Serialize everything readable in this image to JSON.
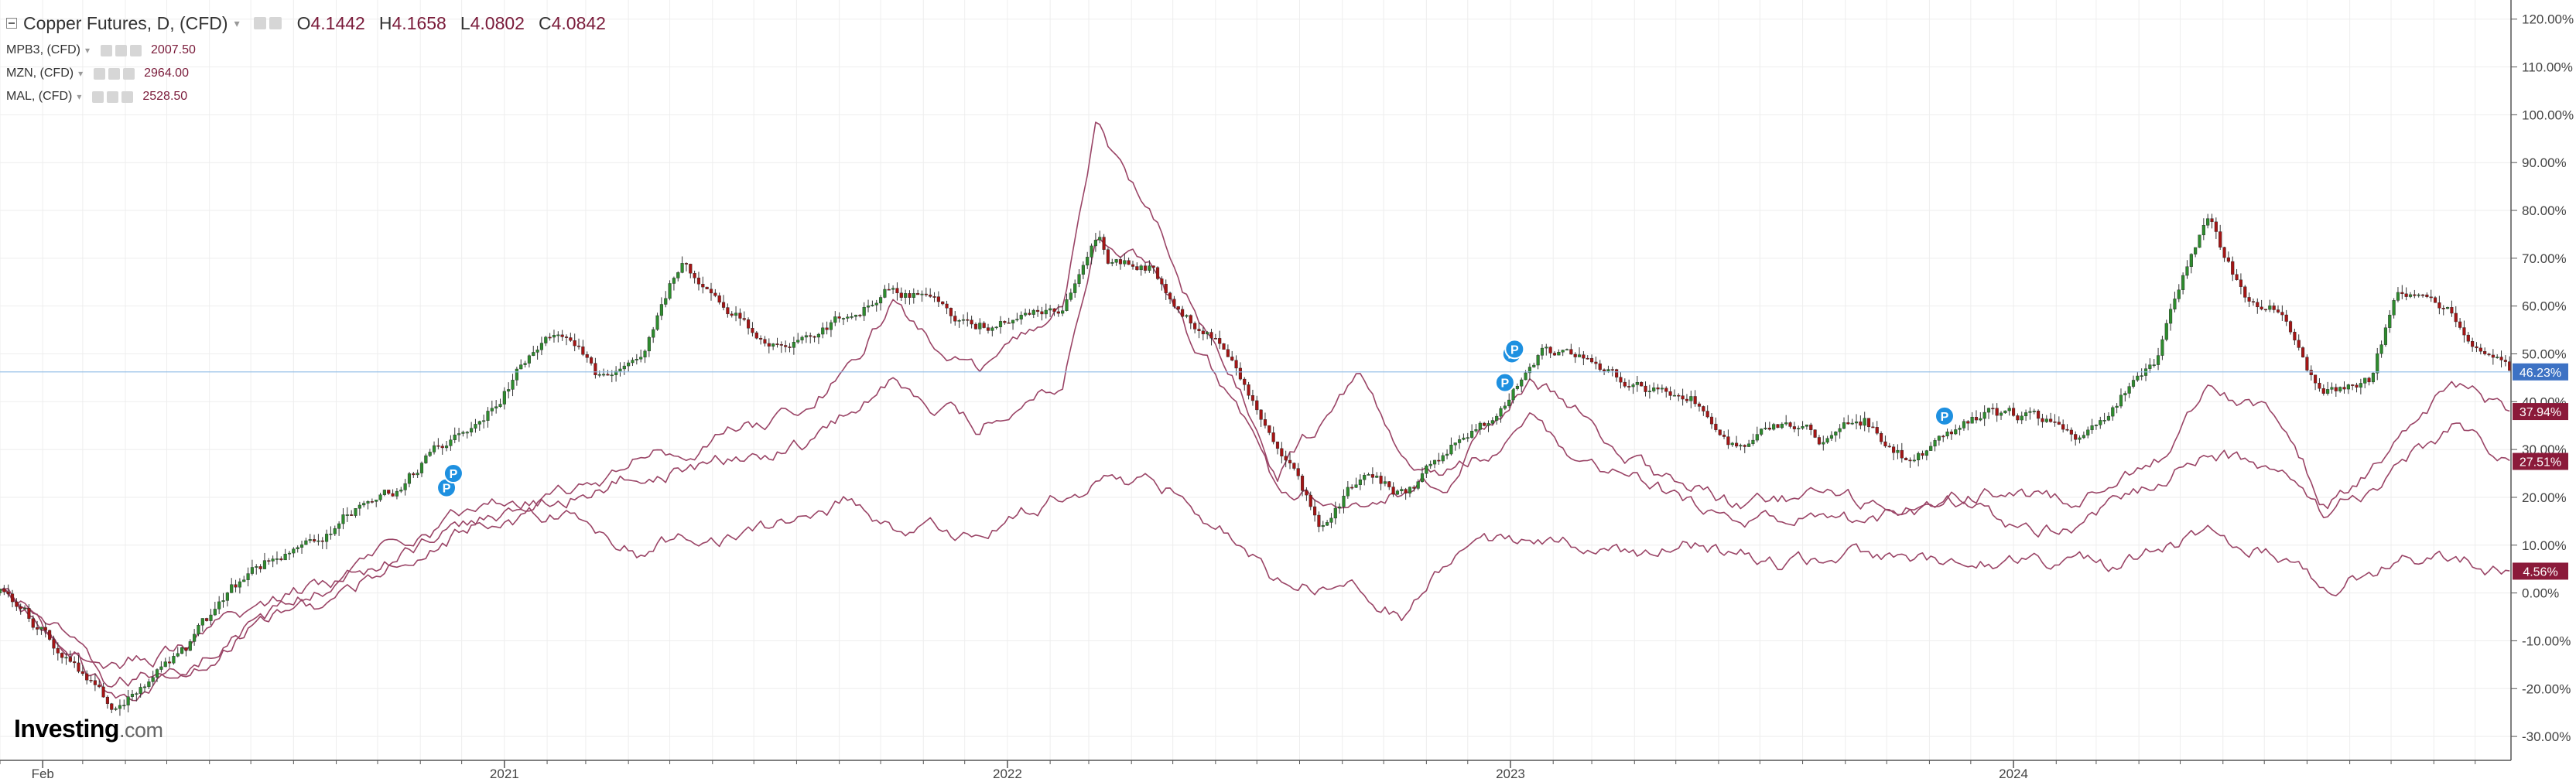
{
  "legend": {
    "title": "Copper Futures, D, (CFD)",
    "ohlc": {
      "o_key": "O",
      "o": "4.1442",
      "h_key": "H",
      "h": "4.1658",
      "l_key": "L",
      "l": "4.0802",
      "c_key": "C",
      "c": "4.0842"
    },
    "series": [
      {
        "label": "MPB3, (CFD)",
        "value": "2007.50"
      },
      {
        "label": "MZN, (CFD)",
        "value": "2964.00"
      },
      {
        "label": "MAL, (CFD)",
        "value": "2528.50"
      }
    ]
  },
  "watermark": {
    "bold": "Investing",
    "light": ".com"
  },
  "colors": {
    "up": "#2e8b2e",
    "down": "#a31515",
    "overlay": "#9a4466",
    "price_label": "#3d72c4",
    "overlay_label": "#8b1a3a",
    "axis": "#555555",
    "grid": "#eeeeee"
  },
  "chart_data": {
    "type": "line",
    "y_unit": "percent",
    "ylim": [
      -35,
      124
    ],
    "yticks": [
      -30,
      -20,
      -10,
      0,
      10,
      20,
      30,
      40,
      50,
      60,
      70,
      80,
      90,
      100,
      110,
      120
    ],
    "ytick_labels": [
      "-30.00%",
      "-20.00%",
      "-10.00%",
      "0.00%",
      "10.00%",
      "20.00%",
      "30.00%",
      "40.00%",
      "50.00%",
      "60.00%",
      "70.00%",
      "80.00%",
      "90.00%",
      "100.00%",
      "110.00%",
      "120.00%"
    ],
    "xlim": [
      "2020-01-01",
      "2024-12-27"
    ],
    "xticks": [
      {
        "date": "2020-02-01",
        "label": "Feb"
      },
      {
        "date": "2021-01-01",
        "label": "2021"
      },
      {
        "date": "2022-01-01",
        "label": "2022"
      },
      {
        "date": "2023-01-01",
        "label": "2023"
      },
      {
        "date": "2024-01-01",
        "label": "2024"
      }
    ],
    "grid": true,
    "legend_position": "top-left",
    "series": [
      {
        "name": "Copper Futures, D, (CFD)",
        "style": "candlestick",
        "last_label": "46.23%",
        "points": [
          [
            "2020-01-01",
            0
          ],
          [
            "2020-02-01",
            -8
          ],
          [
            "2020-03-15",
            -22
          ],
          [
            "2020-03-22",
            -25
          ],
          [
            "2020-04-15",
            -20
          ],
          [
            "2020-05-15",
            -12
          ],
          [
            "2020-06-15",
            0
          ],
          [
            "2020-07-15",
            7
          ],
          [
            "2020-08-15",
            10
          ],
          [
            "2020-09-15",
            18
          ],
          [
            "2020-10-15",
            22
          ],
          [
            "2020-11-15",
            30
          ],
          [
            "2020-12-15",
            35
          ],
          [
            "2021-01-10",
            46
          ],
          [
            "2021-02-10",
            55
          ],
          [
            "2021-03-10",
            45
          ],
          [
            "2021-04-10",
            50
          ],
          [
            "2021-05-10",
            70
          ],
          [
            "2021-06-10",
            60
          ],
          [
            "2021-07-10",
            53
          ],
          [
            "2021-08-10",
            55
          ],
          [
            "2021-09-10",
            58
          ],
          [
            "2021-10-10",
            65
          ],
          [
            "2021-11-10",
            60
          ],
          [
            "2021-12-10",
            56
          ],
          [
            "2022-01-10",
            58
          ],
          [
            "2022-02-10",
            60
          ],
          [
            "2022-03-07",
            75
          ],
          [
            "2022-03-15",
            70
          ],
          [
            "2022-04-15",
            68
          ],
          [
            "2022-05-15",
            57
          ],
          [
            "2022-06-15",
            48
          ],
          [
            "2022-07-15",
            32
          ],
          [
            "2022-08-15",
            15
          ],
          [
            "2022-09-15",
            25
          ],
          [
            "2022-10-15",
            20
          ],
          [
            "2022-11-15",
            30
          ],
          [
            "2022-12-15",
            36
          ],
          [
            "2023-01-10",
            45
          ],
          [
            "2023-01-25",
            52
          ],
          [
            "2023-03-15",
            45
          ],
          [
            "2023-05-15",
            40
          ],
          [
            "2023-06-15",
            30
          ],
          [
            "2023-07-15",
            35
          ],
          [
            "2023-08-15",
            32
          ],
          [
            "2023-09-15",
            36
          ],
          [
            "2023-10-15",
            28
          ],
          [
            "2023-11-15",
            33
          ],
          [
            "2023-12-15",
            38
          ],
          [
            "2024-01-15",
            36
          ],
          [
            "2024-02-15",
            33
          ],
          [
            "2024-03-15",
            40
          ],
          [
            "2024-04-15",
            50
          ],
          [
            "2024-05-20",
            80
          ],
          [
            "2024-06-15",
            62
          ],
          [
            "2024-07-15",
            60
          ],
          [
            "2024-08-10",
            42
          ],
          [
            "2024-09-15",
            45
          ],
          [
            "2024-10-05",
            62
          ],
          [
            "2024-11-15",
            58
          ],
          [
            "2024-12-27",
            46.23
          ]
        ]
      },
      {
        "name": "MPB3, (CFD)",
        "style": "line",
        "last_label": "4.56%",
        "points": [
          [
            "2020-01-01",
            0
          ],
          [
            "2020-02-01",
            -5
          ],
          [
            "2020-03-22",
            -20
          ],
          [
            "2020-05-15",
            -15
          ],
          [
            "2020-07-15",
            -5
          ],
          [
            "2020-09-15",
            0
          ],
          [
            "2020-10-15",
            8
          ],
          [
            "2020-12-15",
            15
          ],
          [
            "2021-02-10",
            17
          ],
          [
            "2021-04-10",
            8
          ],
          [
            "2021-05-10",
            12
          ],
          [
            "2021-07-10",
            13
          ],
          [
            "2021-09-10",
            20
          ],
          [
            "2021-10-10",
            14
          ],
          [
            "2021-12-10",
            12
          ],
          [
            "2022-02-10",
            20
          ],
          [
            "2022-03-15",
            25
          ],
          [
            "2022-05-15",
            20
          ],
          [
            "2022-07-15",
            3
          ],
          [
            "2022-09-15",
            2
          ],
          [
            "2022-10-15",
            -5
          ],
          [
            "2022-11-15",
            6
          ],
          [
            "2023-01-15",
            12
          ],
          [
            "2023-03-15",
            8
          ],
          [
            "2023-05-15",
            10
          ],
          [
            "2023-07-15",
            6
          ],
          [
            "2023-09-15",
            8
          ],
          [
            "2023-11-15",
            5
          ],
          [
            "2024-01-15",
            8
          ],
          [
            "2024-03-15",
            5
          ],
          [
            "2024-05-20",
            12
          ],
          [
            "2024-07-15",
            8
          ],
          [
            "2024-08-15",
            2
          ],
          [
            "2024-10-15",
            8
          ],
          [
            "2024-12-27",
            4.56
          ]
        ]
      },
      {
        "name": "MZN, (CFD)",
        "style": "line",
        "last_label": "37.94%",
        "points": [
          [
            "2020-01-01",
            0
          ],
          [
            "2020-02-01",
            -8
          ],
          [
            "2020-03-22",
            -22
          ],
          [
            "2020-05-15",
            -15
          ],
          [
            "2020-07-15",
            -5
          ],
          [
            "2020-09-15",
            5
          ],
          [
            "2020-10-15",
            12
          ],
          [
            "2020-12-15",
            18
          ],
          [
            "2021-02-10",
            20
          ],
          [
            "2021-04-10",
            25
          ],
          [
            "2021-06-10",
            27
          ],
          [
            "2021-08-10",
            32
          ],
          [
            "2021-10-10",
            45
          ],
          [
            "2021-12-10",
            35
          ],
          [
            "2022-02-10",
            45
          ],
          [
            "2022-03-07",
            75
          ],
          [
            "2022-04-15",
            70
          ],
          [
            "2022-05-15",
            52
          ],
          [
            "2022-06-15",
            40
          ],
          [
            "2022-07-15",
            22
          ],
          [
            "2022-09-15",
            20
          ],
          [
            "2022-11-15",
            24
          ],
          [
            "2023-01-15",
            45
          ],
          [
            "2023-02-15",
            38
          ],
          [
            "2023-04-15",
            25
          ],
          [
            "2023-06-15",
            18
          ],
          [
            "2023-08-15",
            20
          ],
          [
            "2023-10-15",
            16
          ],
          [
            "2023-12-15",
            22
          ],
          [
            "2024-02-15",
            18
          ],
          [
            "2024-04-15",
            28
          ],
          [
            "2024-05-20",
            45
          ],
          [
            "2024-07-15",
            35
          ],
          [
            "2024-08-15",
            18
          ],
          [
            "2024-10-15",
            35
          ],
          [
            "2024-11-15",
            42
          ],
          [
            "2024-12-27",
            37.94
          ]
        ]
      },
      {
        "name": "MAL, (CFD)",
        "style": "line",
        "last_label": "27.51%",
        "points": [
          [
            "2020-01-01",
            0
          ],
          [
            "2020-02-01",
            -8
          ],
          [
            "2020-03-22",
            -15
          ],
          [
            "2020-05-15",
            -12
          ],
          [
            "2020-07-15",
            -2
          ],
          [
            "2020-09-15",
            5
          ],
          [
            "2020-10-15",
            8
          ],
          [
            "2020-12-15",
            15
          ],
          [
            "2021-02-10",
            20
          ],
          [
            "2021-04-10",
            28
          ],
          [
            "2021-06-10",
            33
          ],
          [
            "2021-08-10",
            38
          ],
          [
            "2021-10-10",
            60
          ],
          [
            "2021-12-10",
            45
          ],
          [
            "2022-02-10",
            60
          ],
          [
            "2022-03-07",
            100
          ],
          [
            "2022-03-20",
            90
          ],
          [
            "2022-04-15",
            80
          ],
          [
            "2022-05-15",
            60
          ],
          [
            "2022-06-15",
            45
          ],
          [
            "2022-07-15",
            25
          ],
          [
            "2022-09-15",
            45
          ],
          [
            "2022-10-15",
            28
          ],
          [
            "2022-11-15",
            25
          ],
          [
            "2023-01-15",
            35
          ],
          [
            "2023-03-15",
            25
          ],
          [
            "2023-05-15",
            18
          ],
          [
            "2023-07-15",
            15
          ],
          [
            "2023-09-15",
            15
          ],
          [
            "2023-11-15",
            20
          ],
          [
            "2024-01-15",
            12
          ],
          [
            "2024-03-15",
            18
          ],
          [
            "2024-05-20",
            30
          ],
          [
            "2024-07-15",
            25
          ],
          [
            "2024-08-15",
            15
          ],
          [
            "2024-10-15",
            28
          ],
          [
            "2024-11-15",
            35
          ],
          [
            "2024-12-27",
            27.51
          ]
        ]
      }
    ],
    "annotations": [
      {
        "date": "2020-11-20",
        "value": 22,
        "text": "P"
      },
      {
        "date": "2020-11-25",
        "value": 25,
        "text": "P"
      },
      {
        "date": "2022-12-28",
        "value": 44,
        "text": "P"
      },
      {
        "date": "2023-01-02",
        "value": 50,
        "text": "P"
      },
      {
        "date": "2023-01-04",
        "value": 51,
        "text": "P"
      },
      {
        "date": "2023-11-12",
        "value": 37,
        "text": "P"
      }
    ],
    "reference_line": {
      "value": 46.23
    }
  }
}
